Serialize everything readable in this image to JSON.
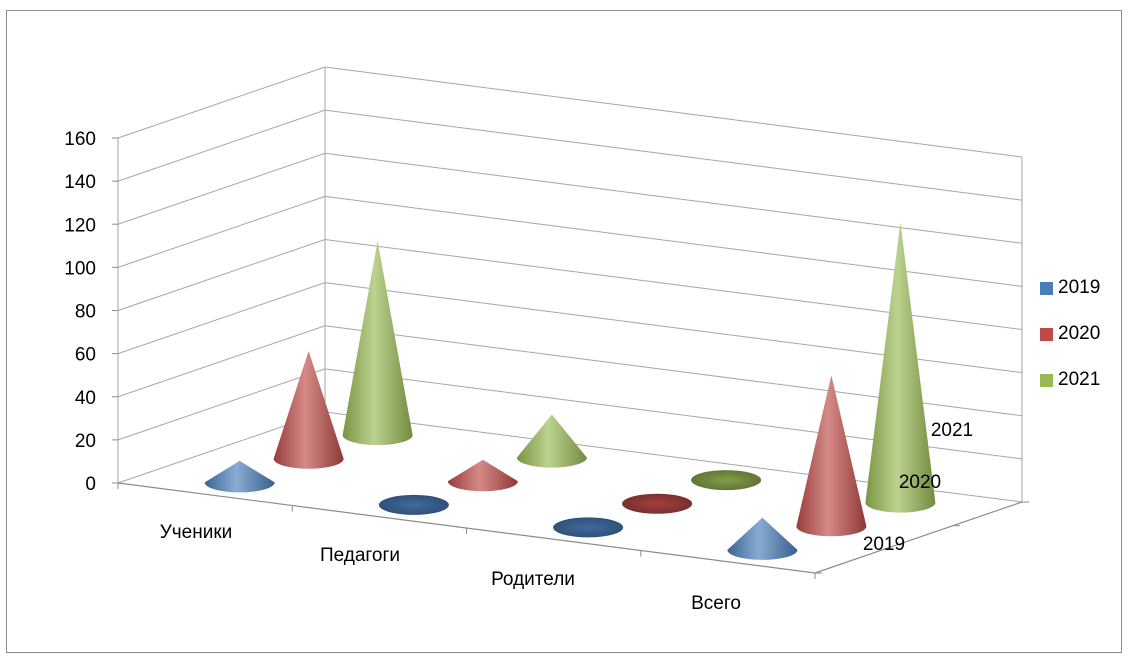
{
  "chart_data": {
    "type": "3d-cone",
    "title": "",
    "categories": [
      "Ученики",
      "Педагоги",
      "Родители",
      "Всего"
    ],
    "depth_categories": [
      "2019",
      "2020",
      "2021"
    ],
    "series": [
      {
        "name": "2019",
        "color": "#4a7ebb",
        "values": [
          10,
          0,
          0,
          15
        ]
      },
      {
        "name": "2020",
        "color": "#be4b48",
        "values": [
          50,
          10,
          0,
          70
        ]
      },
      {
        "name": "2021",
        "color": "#98b954",
        "values": [
          90,
          20,
          0,
          130
        ]
      }
    ],
    "ylim": [
      0,
      160
    ],
    "yticks": [
      0,
      20,
      40,
      60,
      80,
      100,
      120,
      140,
      160
    ],
    "grid": true,
    "legend_position": "right"
  }
}
